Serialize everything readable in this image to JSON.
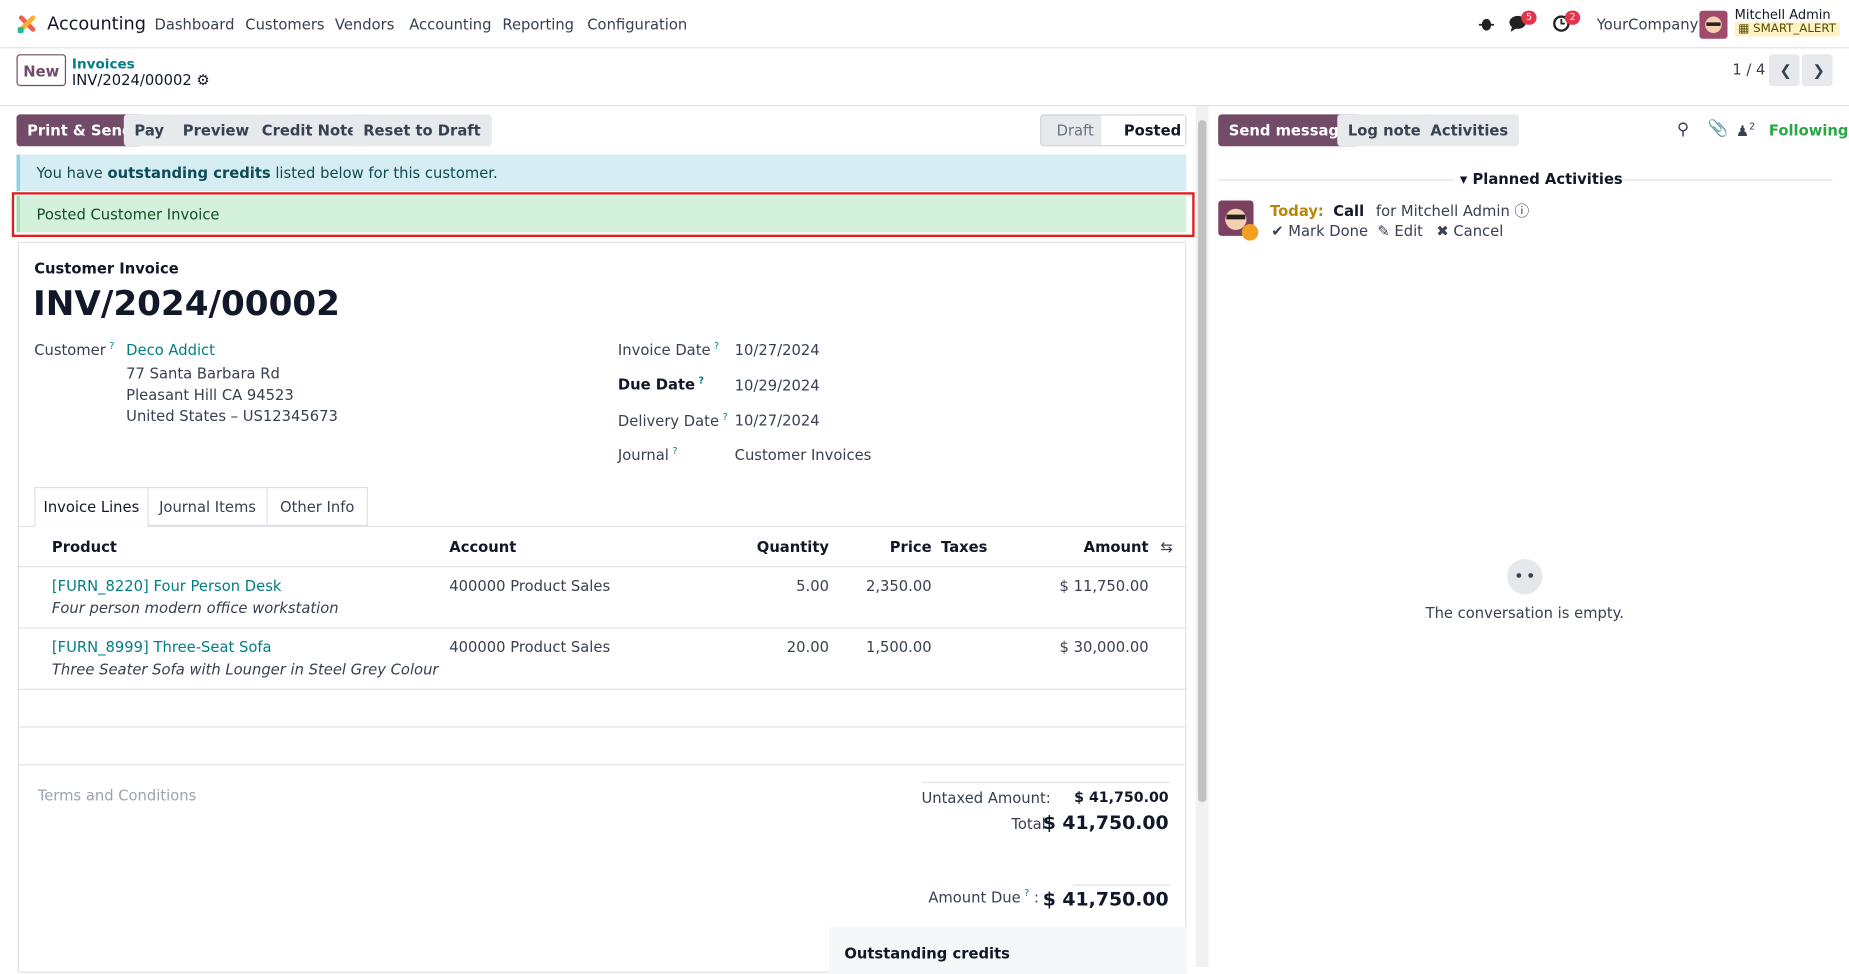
{
  "navbar": {
    "app": "Accounting",
    "menu": [
      "Dashboard",
      "Customers",
      "Vendors",
      "Accounting",
      "Reporting",
      "Configuration"
    ],
    "messages_badge": "5",
    "activities_badge": "2",
    "company": "YourCompany",
    "user": "Mitchell Admin",
    "database": "SMART_ALERT"
  },
  "control": {
    "new": "New",
    "breadcrumb": "Invoices",
    "record": "INV/2024/00002",
    "pager": "1 / 4"
  },
  "buttons": [
    "Print & Send",
    "Pay",
    "Preview",
    "Credit Note",
    "Reset to Draft"
  ],
  "status": [
    "Draft",
    "Posted"
  ],
  "alerts": {
    "credits": [
      "You have ",
      "outstanding credits",
      " listed below for this customer."
    ],
    "posted": "Posted Customer Invoice"
  },
  "invoice": {
    "type": "Customer Invoice",
    "number": "INV/2024/00002",
    "help": "?",
    "customer_label": "Customer",
    "customer": "Deco Addict",
    "address": [
      "77 Santa Barbara Rd",
      "Pleasant Hill CA 94523",
      "United States – US12345673"
    ],
    "fields": [
      {
        "label": "Invoice Date",
        "value": "10/27/2024"
      },
      {
        "label": "Due Date",
        "value": "10/29/2024"
      },
      {
        "label": "Delivery Date",
        "value": "10/27/2024"
      },
      {
        "label": "Journal",
        "value": "Customer Invoices"
      }
    ]
  },
  "tabs": [
    "Invoice Lines",
    "Journal Items",
    "Other Info"
  ],
  "lines": {
    "columns": [
      "Product",
      "Account",
      "Quantity",
      "Price",
      "Taxes",
      "Amount"
    ],
    "rows": [
      {
        "product": "[FURN_8220] Four Person Desk",
        "description": "Four person modern office workstation",
        "account": "400000 Product Sales",
        "quantity": "5.00",
        "price": "2,350.00",
        "amount": "$ 11,750.00"
      },
      {
        "product": "[FURN_8999] Three-Seat Sofa",
        "description": "Three Seater Sofa with Lounger in Steel Grey Colour",
        "account": "400000 Product Sales",
        "quantity": "20.00",
        "price": "1,500.00",
        "amount": "$ 30,000.00"
      }
    ]
  },
  "totals": {
    "terms": "Terms and Conditions",
    "untaxed_label": "Untaxed Amount:",
    "untaxed": "$ 41,750.00",
    "total_label": "Total:",
    "total": "$ 41,750.00",
    "due_label": "Amount Due",
    "due": "$ 41,750.00",
    "outstanding": "Outstanding credits"
  },
  "chatter": {
    "buttons": [
      "Send message",
      "Log note",
      "Activities"
    ],
    "followers": "2",
    "following": "Following",
    "planned": "Planned Activities",
    "activity": {
      "due": "Today:",
      "type": "Call",
      "assignee": "for Mitchell Admin",
      "actions": [
        "Mark Done",
        "Edit",
        "Cancel"
      ]
    },
    "empty": "The conversation is empty."
  }
}
